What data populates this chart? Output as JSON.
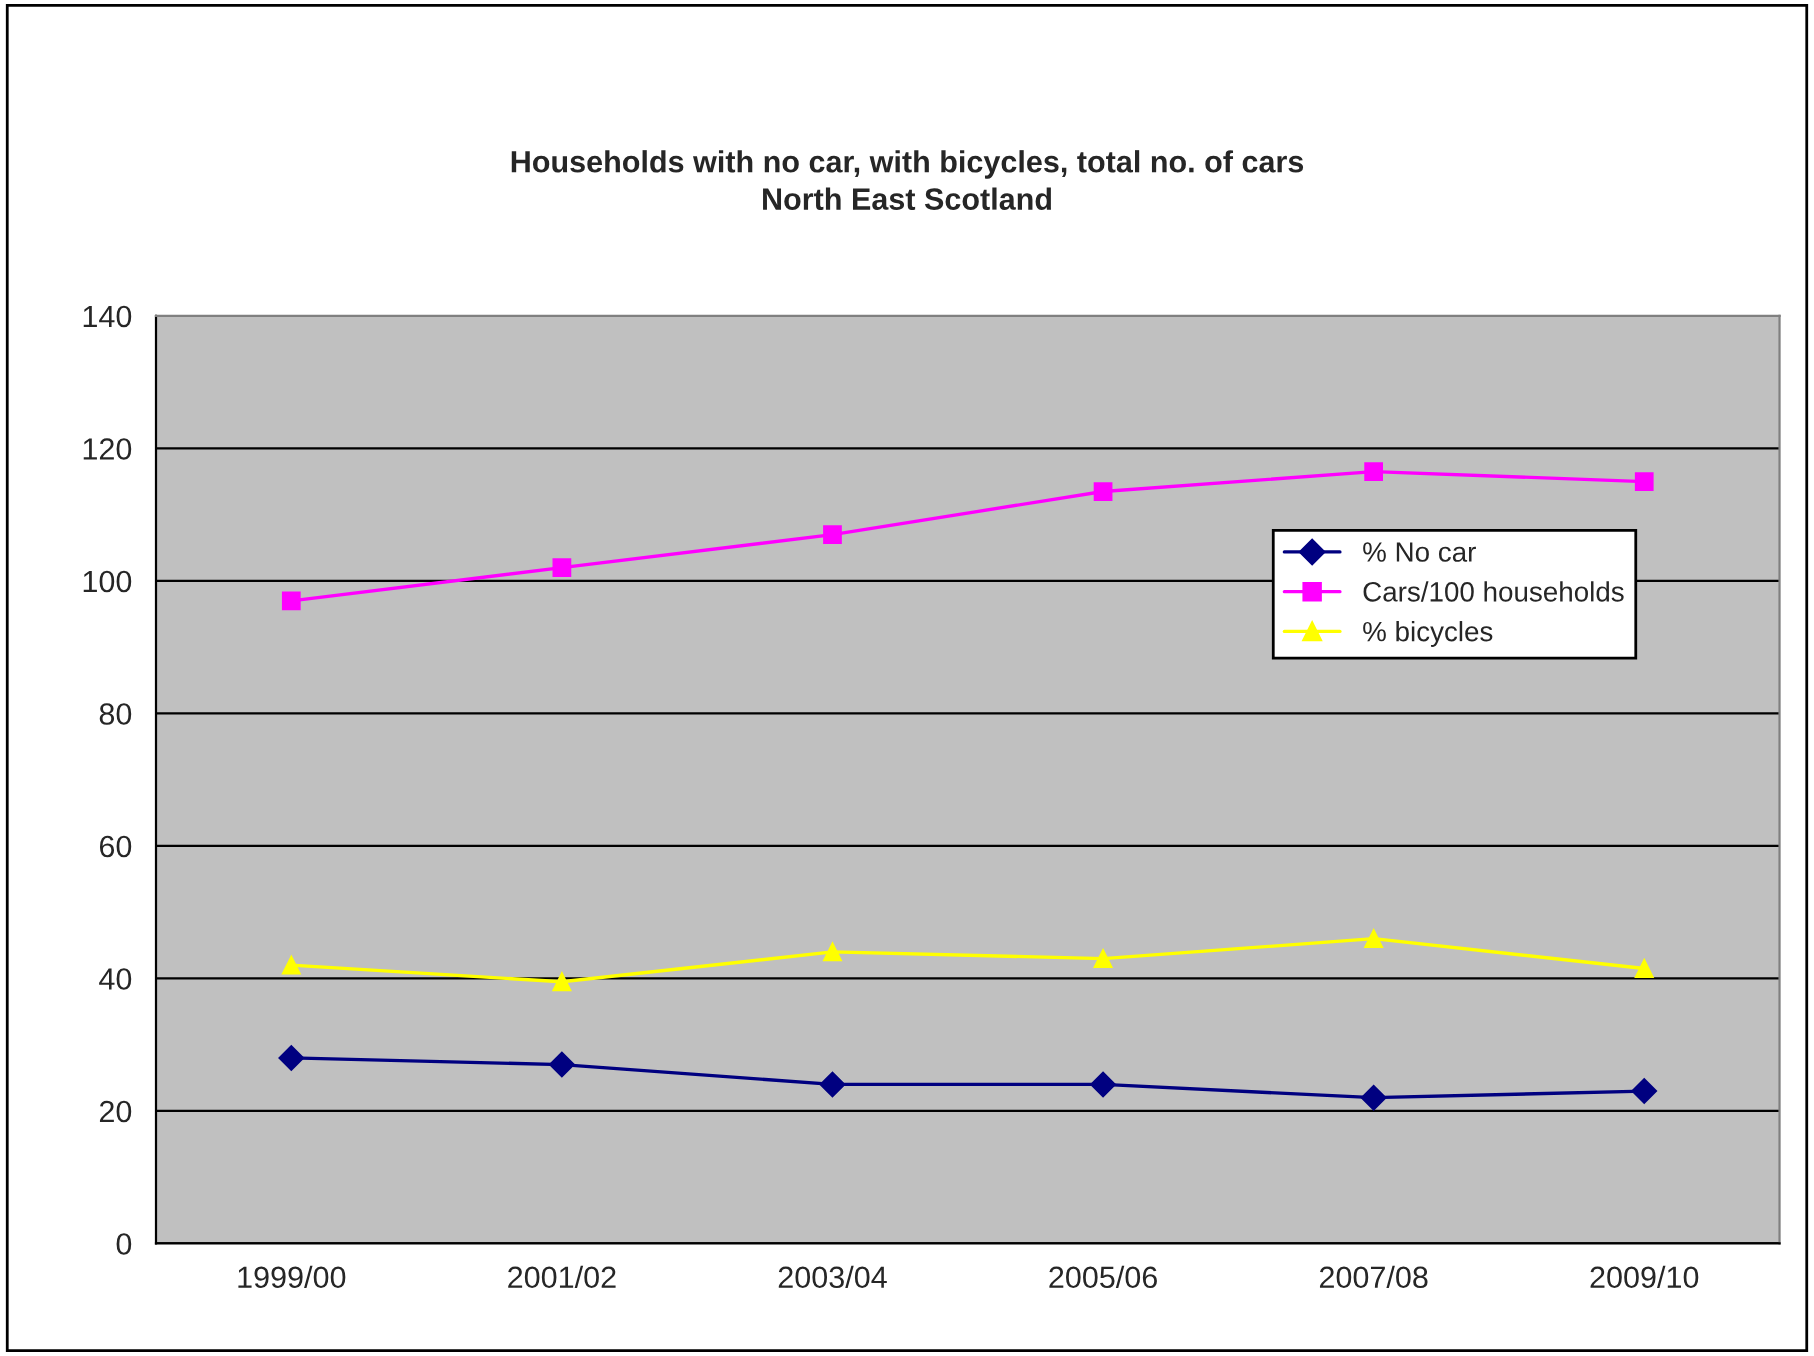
{
  "chart_data": {
    "type": "line",
    "title": "Households with no car, with bicycles, total no. of cars\nNorth East Scotland",
    "categories": [
      "1999/00",
      "2001/02",
      "2003/04",
      "2005/06",
      "2007/08",
      "2009/10"
    ],
    "series": [
      {
        "name": "% No car",
        "color": "#000080",
        "marker": "diamond",
        "values": [
          28,
          27,
          24,
          24,
          22,
          23
        ]
      },
      {
        "name": "Cars/100 households",
        "color": "#ff00ff",
        "marker": "square",
        "values": [
          97,
          102,
          107,
          113.5,
          116.5,
          115
        ]
      },
      {
        "name": "% bicycles",
        "color": "#ffff00",
        "marker": "triangle",
        "values": [
          42,
          39.5,
          44,
          43,
          46,
          41.5
        ]
      }
    ],
    "ylim": [
      0,
      140
    ],
    "yticks": [
      0,
      20,
      40,
      60,
      80,
      100,
      120,
      140
    ],
    "grid": "y",
    "legend": "right"
  }
}
